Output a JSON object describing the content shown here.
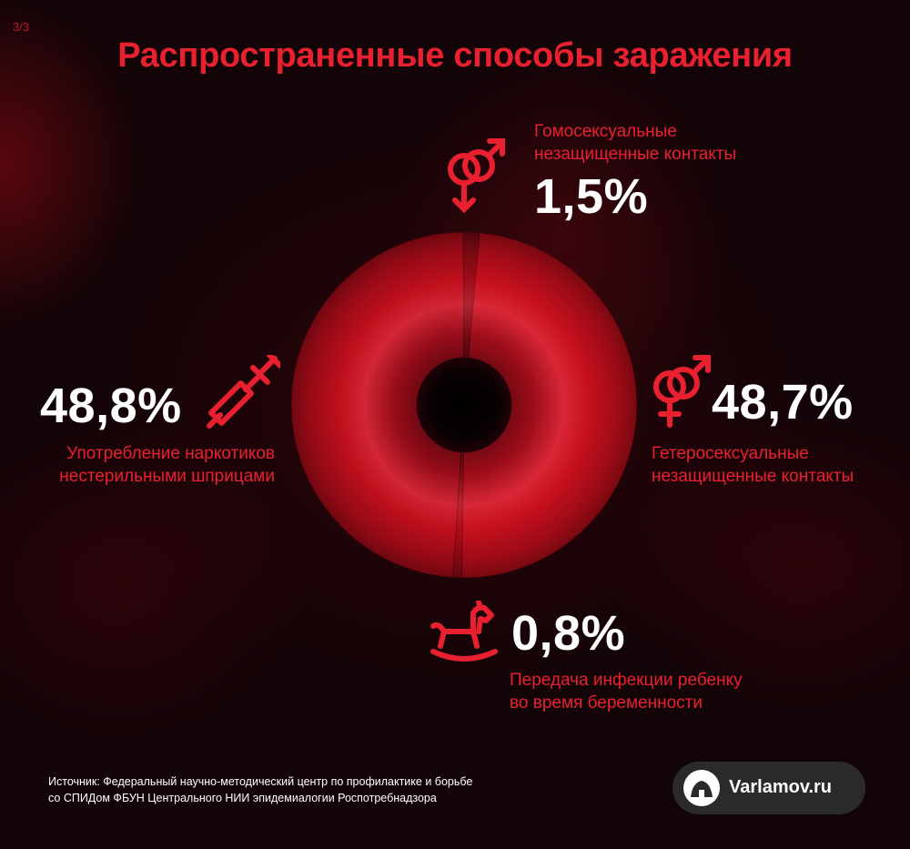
{
  "page_counter": "3/3",
  "title": "Распространенные способы заражения",
  "chart_data": {
    "type": "pie",
    "categories": [
      "Гомосексуальные незащищенные контакты",
      "Гетеросексуальные незащищенные контакты",
      "Передача инфекции ребенку во время беременности",
      "Употребление наркотиков нестерильными шприцами"
    ],
    "values": [
      1.5,
      48.7,
      0.8,
      48.8
    ],
    "colors": [
      "#6a0a12",
      "#c5101e",
      "#8a0a16",
      "#b50e1c"
    ]
  },
  "segments": {
    "homosexual": {
      "line1": "Гомосексуальные",
      "line2": "незащищенные контакты",
      "value_label": "1,5%",
      "icon": "male-male-symbol-icon"
    },
    "heterosexual": {
      "line1": "Гетеросексуальные",
      "line2": "незащищенные контакты",
      "value_label": "48,7%",
      "icon": "male-female-symbol-icon"
    },
    "pregnancy": {
      "line1": "Передача инфекции ребенку",
      "line2": "во время беременности",
      "value_label": "0,8%",
      "icon": "rocking-horse-icon"
    },
    "syringe": {
      "line1": "Употребление наркотиков",
      "line2": "нестерильными шприцами",
      "value_label": "48,8%",
      "icon": "syringe-icon"
    }
  },
  "source": {
    "line1": "Источник: Федеральный научно-методический центр по профилактике и борьбе",
    "line2": "со СПИДом ФБУН Центрального НИИ эпидемиалогии Роспотребнадзора"
  },
  "brand": {
    "label": "Varlamov.ru",
    "icon": "varlamov-logo-icon"
  },
  "accent_color": "#e8202f"
}
